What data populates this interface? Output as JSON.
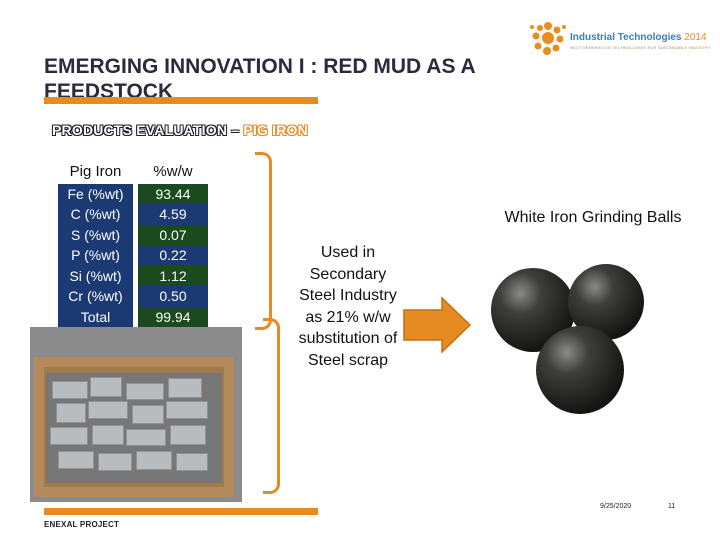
{
  "logo": {
    "brand": "Industrial Technologies",
    "year": "2014",
    "tagline": "NEXT GENERATION TECHNOLOGIES FOR SUSTAINABLE INDUSTRY"
  },
  "title": "EMERGING INNOVATION I : RED MUD AS A FEEDSTOCK",
  "subtitle": {
    "prefix": "PRODUCTS EVALUATION – ",
    "highlight": "PIG IRON"
  },
  "table": {
    "headers": [
      "Pig Iron",
      "%w/w"
    ],
    "rows": [
      [
        "Fe (%wt)",
        "93.44"
      ],
      [
        "C (%wt)",
        "4.59"
      ],
      [
        "S (%wt)",
        "0.07"
      ],
      [
        "P (%wt)",
        "0.22"
      ],
      [
        "Si (%wt)",
        "1.12"
      ],
      [
        "Cr (%wt)",
        "0.50"
      ],
      [
        "Total",
        "99.94"
      ]
    ]
  },
  "used_text": "Used in Secondary Steel Industry as 21% w/w substitution of Steel scrap",
  "balls_label": "White Iron Grinding Balls",
  "footer": {
    "project": "ENEXAL PROJECT",
    "date": "9/25/2020",
    "page": "11"
  },
  "colors": {
    "accent": "#e68a22",
    "table_blue": "#1b3a73",
    "table_green": "#1b4a1f",
    "title": "#2b2b3b"
  },
  "icons": [
    "sunflower-logo-icon",
    "right-arrow-icon"
  ]
}
